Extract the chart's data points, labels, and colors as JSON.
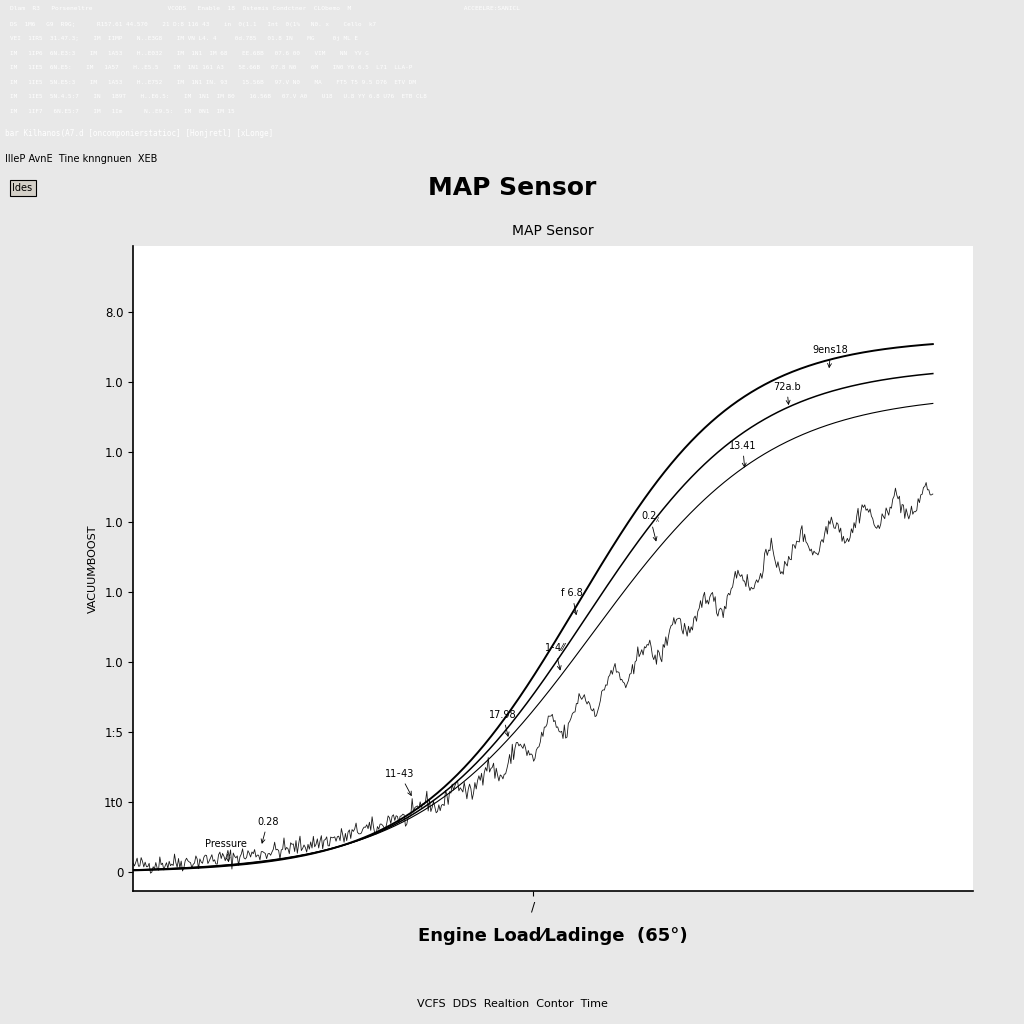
{
  "chart_title": "MAP Sensor",
  "xlabel": "Engine Load⁄Ladinge  (65°)",
  "ylabel": "VACUUM⁄BOOST",
  "ytick_positions": [
    0,
    0.38,
    0.76,
    1.14,
    1.52,
    1.9,
    2.28,
    2.66,
    3.04
  ],
  "ytick_labels": [
    "0",
    "1t0",
    "1:5",
    "1.0",
    "1.0",
    "1.0",
    "1.0",
    "1.0",
    "8.0"
  ],
  "xlim": [
    0,
    1.05
  ],
  "ylim": [
    -0.1,
    3.4
  ],
  "window_title": "MAP Sensor",
  "tab_text": "IlleP AvnE  Tine knngnuen  XEB",
  "btn_text": "Ides",
  "footer_text": "VCFS  DDS  Realtion  Contor  Time",
  "plot_bg": "#ffffff",
  "outer_bg": "#f0f0f0"
}
